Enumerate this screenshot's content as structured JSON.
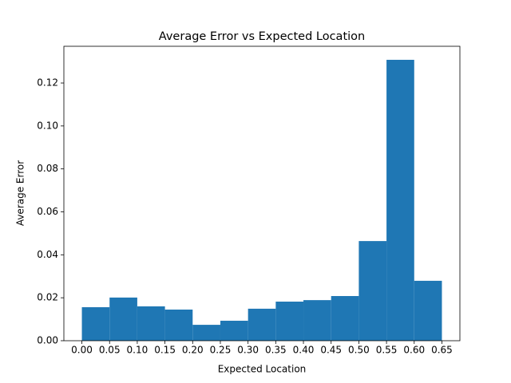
{
  "chart_data": {
    "type": "histogram",
    "title": "Average Error vs Expected Location",
    "x_label": "Expected Location",
    "y_label": "Average Error",
    "color": "#1f77b4",
    "bins": [
      0.0,
      0.05,
      0.1,
      0.15,
      0.2,
      0.25,
      0.3,
      0.35,
      0.4,
      0.45,
      0.5,
      0.55,
      0.6,
      0.65
    ],
    "values": [
      0.0156,
      0.0201,
      0.016,
      0.0145,
      0.0074,
      0.0093,
      0.0149,
      0.0182,
      0.0189,
      0.0208,
      0.0464,
      0.1308,
      0.0279
    ],
    "xlim": [
      -0.0325,
      0.6825
    ],
    "ylim": [
      0,
      0.1371
    ],
    "xticks": [
      {
        "value": 0,
        "label": "0.00"
      },
      {
        "value": 0.05,
        "label": "0.05"
      },
      {
        "value": 0.1,
        "label": "0.10"
      },
      {
        "value": 0.15,
        "label": "0.15"
      },
      {
        "value": 0.2,
        "label": "0.20"
      },
      {
        "value": 0.25,
        "label": "0.25"
      },
      {
        "value": 0.3,
        "label": "0.30"
      },
      {
        "value": 0.35,
        "label": "0.35"
      },
      {
        "value": 0.4,
        "label": "0.40"
      },
      {
        "value": 0.45,
        "label": "0.45"
      },
      {
        "value": 0.5,
        "label": "0.50"
      },
      {
        "value": 0.55,
        "label": "0.55"
      },
      {
        "value": 0.6,
        "label": "0.60"
      },
      {
        "value": 0.65,
        "label": "0.65"
      }
    ],
    "yticks": [
      {
        "value": 0,
        "label": "0.00"
      },
      {
        "value": 0.02,
        "label": "0.02"
      },
      {
        "value": 0.04,
        "label": "0.04"
      },
      {
        "value": 0.06,
        "label": "0.06"
      },
      {
        "value": 0.08,
        "label": "0.08"
      },
      {
        "value": 0.1,
        "label": "0.10"
      },
      {
        "value": 0.12,
        "label": "0.12"
      }
    ],
    "grid": false
  }
}
